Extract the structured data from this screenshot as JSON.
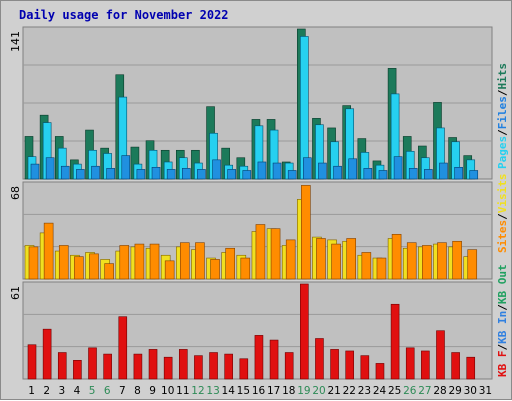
{
  "title": "Daily usage for November 2022",
  "colors": {
    "hits": "#1c7a5a",
    "files": "#26d0f0",
    "pages": "#26d0f0",
    "visits": "#f0e020",
    "sites": "#ff8c00",
    "kbin": "#3080e0",
    "kbout": "#20a060",
    "kbf": "#e01010",
    "weekend_label": "#2e8b57",
    "weekday_label": "#000000"
  },
  "chart_data": [
    {
      "type": "bar",
      "ymax_label": "141",
      "ylim": [
        0,
        141
      ],
      "legend": [
        "Pages",
        "Files",
        "Hits"
      ],
      "categories": [
        "1",
        "2",
        "3",
        "4",
        "5",
        "6",
        "7",
        "8",
        "9",
        "10",
        "11",
        "12",
        "13",
        "14",
        "15",
        "16",
        "17",
        "18",
        "19",
        "20",
        "21",
        "22",
        "23",
        "24",
        "25",
        "26",
        "27",
        "28",
        "29",
        "30",
        "31"
      ],
      "series": [
        {
          "name": "Hits",
          "values": [
            40,
            60,
            40,
            18,
            46,
            29,
            98,
            30,
            36,
            27,
            27,
            27,
            68,
            29,
            20,
            56,
            56,
            16,
            141,
            57,
            48,
            69,
            38,
            17,
            104,
            40,
            31,
            72,
            39,
            22,
            0
          ]
        },
        {
          "name": "Files",
          "values": [
            21,
            53,
            29,
            14,
            27,
            24,
            77,
            14,
            27,
            16,
            20,
            15,
            43,
            13,
            12,
            50,
            46,
            15,
            134,
            51,
            35,
            66,
            25,
            13,
            80,
            26,
            20,
            48,
            35,
            18,
            0
          ]
        },
        {
          "name": "Pages",
          "values": [
            14,
            20,
            12,
            9,
            12,
            10,
            22,
            9,
            11,
            9,
            10,
            9,
            18,
            9,
            8,
            16,
            15,
            8,
            20,
            15,
            12,
            19,
            10,
            8,
            21,
            10,
            9,
            15,
            11,
            8,
            0
          ]
        }
      ]
    },
    {
      "type": "bar",
      "ymax_label": "68",
      "ylim": [
        0,
        68
      ],
      "legend": [
        "Visits",
        "Sites",
        "Out",
        "In",
        "KB F"
      ],
      "categories": [
        "1",
        "2",
        "3",
        "4",
        "5",
        "6",
        "7",
        "8",
        "9",
        "10",
        "11",
        "12",
        "13",
        "14",
        "15",
        "16",
        "17",
        "18",
        "19",
        "20",
        "21",
        "22",
        "23",
        "24",
        "25",
        "26",
        "27",
        "28",
        "29",
        "30",
        "31"
      ],
      "series": [
        {
          "name": "Visits",
          "values": [
            24,
            33,
            20,
            17,
            19,
            14,
            20,
            23,
            22,
            17,
            23,
            21,
            15,
            19,
            17,
            34,
            36,
            24,
            57,
            30,
            28,
            27,
            17,
            15,
            29,
            22,
            23,
            25,
            23,
            16,
            0
          ]
        },
        {
          "name": "Sites",
          "values": [
            23,
            40,
            24,
            16,
            18,
            11,
            24,
            25,
            25,
            13,
            26,
            26,
            14,
            22,
            15,
            39,
            36,
            28,
            67,
            29,
            25,
            29,
            19,
            15,
            32,
            26,
            24,
            26,
            27,
            21,
            0
          ]
        }
      ]
    },
    {
      "type": "bar",
      "ymax_label": "61",
      "ylim": [
        0,
        61
      ],
      "legend": [
        "KB F"
      ],
      "categories": [
        "1",
        "2",
        "3",
        "4",
        "5",
        "6",
        "7",
        "8",
        "9",
        "10",
        "11",
        "12",
        "13",
        "14",
        "15",
        "16",
        "17",
        "18",
        "19",
        "20",
        "21",
        "22",
        "23",
        "24",
        "25",
        "26",
        "27",
        "28",
        "29",
        "30",
        "31"
      ],
      "series": [
        {
          "name": "KB F",
          "values": [
            22,
            32,
            17,
            12,
            20,
            16,
            40,
            16,
            19,
            14,
            19,
            15,
            17,
            16,
            13,
            28,
            25,
            17,
            61,
            26,
            19,
            18,
            15,
            10,
            48,
            20,
            18,
            31,
            17,
            14,
            0
          ]
        }
      ]
    }
  ],
  "day_labels": [
    "1",
    "2",
    "3",
    "4",
    "5",
    "6",
    "7",
    "8",
    "9",
    "10",
    "11",
    "12",
    "13",
    "14",
    "15",
    "16",
    "17",
    "18",
    "19",
    "20",
    "21",
    "22",
    "23",
    "24",
    "25",
    "26",
    "27",
    "28",
    "29",
    "30",
    "31"
  ],
  "weekend_days": [
    "5",
    "6",
    "12",
    "13",
    "19",
    "20",
    "26",
    "27"
  ]
}
